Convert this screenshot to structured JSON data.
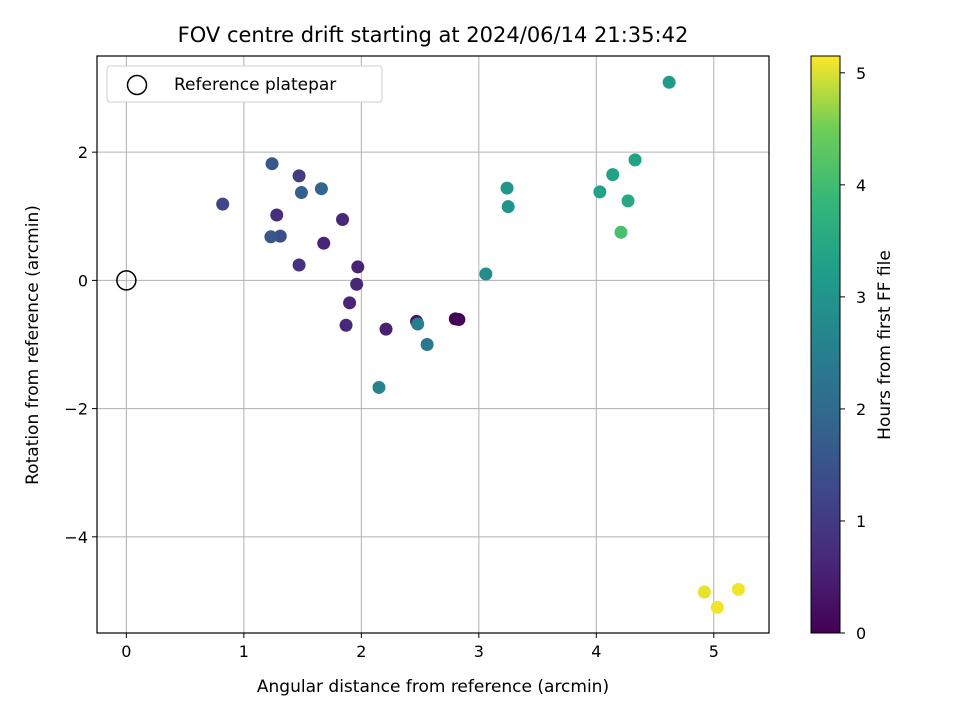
{
  "chart_data": {
    "type": "scatter",
    "title": "FOV centre drift starting at 2024/06/14 21:35:42",
    "xlabel": "Angular distance from reference (arcmin)",
    "ylabel": "Rotation from reference (arcmin)",
    "xlim": [
      -0.25,
      5.47
    ],
    "ylim": [
      -5.5,
      3.5
    ],
    "xticks": [
      0,
      1,
      2,
      3,
      4,
      5
    ],
    "yticks": [
      -4,
      -2,
      0,
      2
    ],
    "grid": true,
    "legend": {
      "placement": "top-left",
      "entries": [
        "Reference platepar"
      ]
    },
    "reference_point": {
      "x": 0,
      "y": 0
    },
    "colorbar": {
      "label": "Hours from first FF file",
      "range": [
        0,
        5.15
      ],
      "ticks": [
        0,
        1,
        2,
        3,
        4,
        5
      ],
      "colormap": "viridis"
    },
    "points": [
      {
        "x": 2.8,
        "y": -0.6,
        "c": 0.05
      },
      {
        "x": 2.83,
        "y": -0.61,
        "c": 0.08
      },
      {
        "x": 2.47,
        "y": -0.64,
        "c": 0.3
      },
      {
        "x": 2.21,
        "y": -0.76,
        "c": 0.55
      },
      {
        "x": 1.87,
        "y": -0.7,
        "c": 0.65
      },
      {
        "x": 1.9,
        "y": -0.35,
        "c": 0.6
      },
      {
        "x": 1.96,
        "y": -0.06,
        "c": 0.62
      },
      {
        "x": 1.97,
        "y": 0.21,
        "c": 0.58
      },
      {
        "x": 1.68,
        "y": 0.58,
        "c": 0.6
      },
      {
        "x": 1.84,
        "y": 0.95,
        "c": 0.66
      },
      {
        "x": 1.47,
        "y": 0.24,
        "c": 0.82
      },
      {
        "x": 1.28,
        "y": 1.02,
        "c": 0.8
      },
      {
        "x": 1.47,
        "y": 1.63,
        "c": 1.05
      },
      {
        "x": 0.82,
        "y": 1.19,
        "c": 1.25
      },
      {
        "x": 1.31,
        "y": 0.69,
        "c": 1.4
      },
      {
        "x": 1.23,
        "y": 0.68,
        "c": 1.6
      },
      {
        "x": 1.24,
        "y": 1.82,
        "c": 1.6
      },
      {
        "x": 1.49,
        "y": 1.37,
        "c": 1.75
      },
      {
        "x": 1.66,
        "y": 1.43,
        "c": 1.9
      },
      {
        "x": 2.56,
        "y": -1.0,
        "c": 2.3
      },
      {
        "x": 2.48,
        "y": -0.68,
        "c": 2.5
      },
      {
        "x": 2.15,
        "y": -1.67,
        "c": 2.6
      },
      {
        "x": 3.06,
        "y": 0.1,
        "c": 2.8
      },
      {
        "x": 3.25,
        "y": 1.15,
        "c": 3.0
      },
      {
        "x": 3.24,
        "y": 1.44,
        "c": 3.05
      },
      {
        "x": 4.62,
        "y": 3.09,
        "c": 3.2
      },
      {
        "x": 4.03,
        "y": 1.38,
        "c": 3.35
      },
      {
        "x": 4.14,
        "y": 1.65,
        "c": 3.3
      },
      {
        "x": 4.33,
        "y": 1.88,
        "c": 3.35
      },
      {
        "x": 4.27,
        "y": 1.24,
        "c": 3.45
      },
      {
        "x": 4.21,
        "y": 0.75,
        "c": 4.1
      },
      {
        "x": 4.92,
        "y": -4.86,
        "c": 5.05
      },
      {
        "x": 5.03,
        "y": -5.1,
        "c": 5.1
      },
      {
        "x": 5.21,
        "y": -4.82,
        "c": 5.1
      }
    ]
  }
}
